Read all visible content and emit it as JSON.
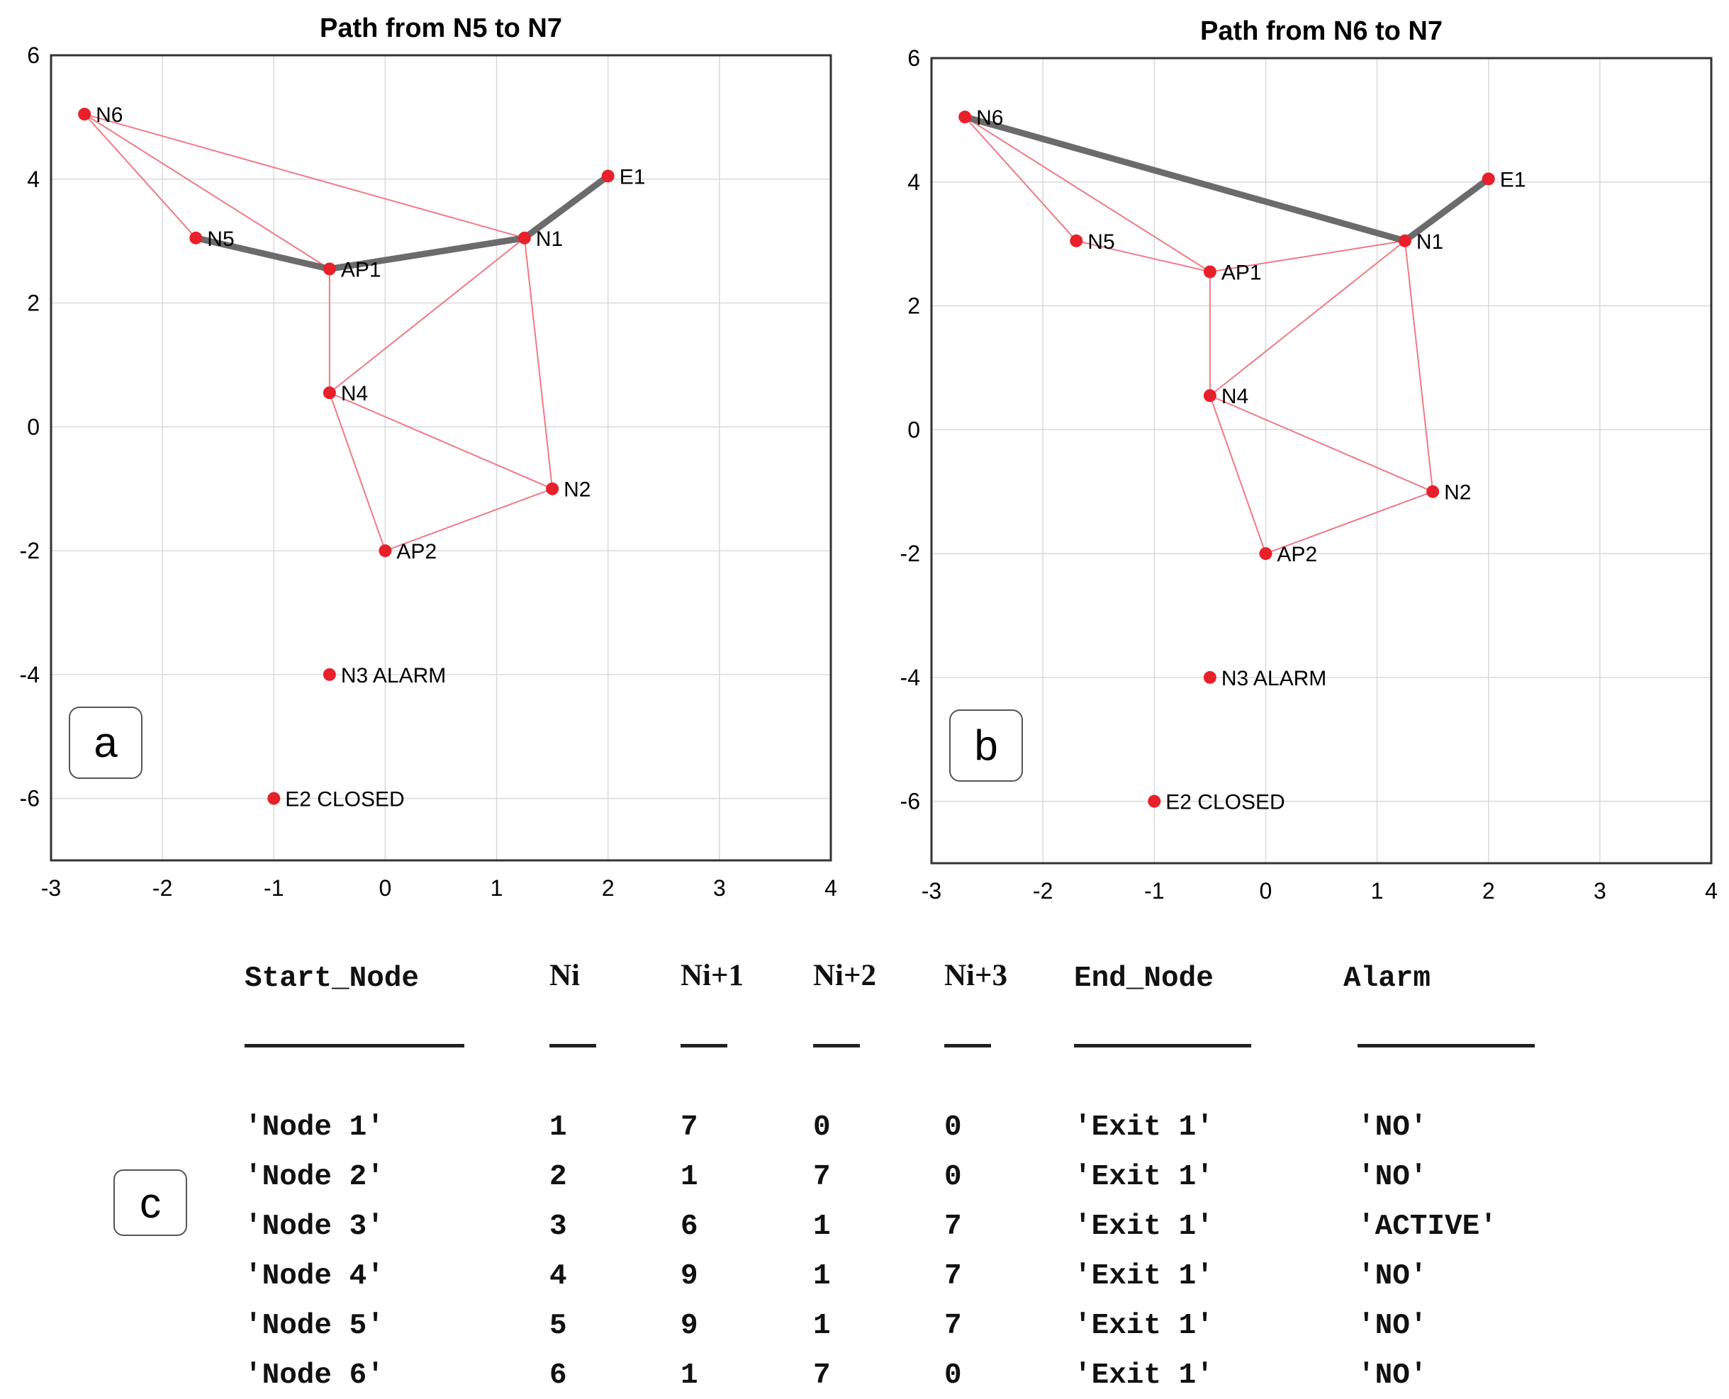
{
  "chart_data": [
    {
      "type": "scatter",
      "panel_label": "a",
      "title": "Path from N5 to N7",
      "xlim": [
        -3,
        4
      ],
      "ylim": [
        -7,
        6
      ],
      "xticks": [
        -3,
        -2,
        -1,
        0,
        1,
        2,
        3,
        4
      ],
      "yticks": [
        6,
        4,
        2,
        0,
        -2,
        -4,
        -6
      ],
      "grid": true,
      "nodes": [
        {
          "id": "N6",
          "label": "N6",
          "x": -2.7,
          "y": 5.05
        },
        {
          "id": "N5",
          "label": "N5",
          "x": -1.7,
          "y": 3.05
        },
        {
          "id": "AP1",
          "label": "AP1",
          "x": -0.5,
          "y": 2.55
        },
        {
          "id": "N1",
          "label": "N1",
          "x": 1.25,
          "y": 3.05
        },
        {
          "id": "E1",
          "label": "E1",
          "x": 2.0,
          "y": 4.05
        },
        {
          "id": "N4",
          "label": "N4",
          "x": -0.5,
          "y": 0.55
        },
        {
          "id": "N2",
          "label": "N2",
          "x": 1.5,
          "y": -1.0
        },
        {
          "id": "AP2",
          "label": "AP2",
          "x": 0.0,
          "y": -2.0
        },
        {
          "id": "N3",
          "label": "N3 ALARM",
          "x": -0.5,
          "y": -4.0
        },
        {
          "id": "E2",
          "label": "E2 CLOSED",
          "x": -1.0,
          "y": -6.0
        }
      ],
      "edges": [
        [
          "N6",
          "N5"
        ],
        [
          "N6",
          "AP1"
        ],
        [
          "N6",
          "N1"
        ],
        [
          "N5",
          "AP1"
        ],
        [
          "AP1",
          "N1"
        ],
        [
          "AP1",
          "N4"
        ],
        [
          "N1",
          "N4"
        ],
        [
          "N1",
          "N2"
        ],
        [
          "N4",
          "N2"
        ],
        [
          "N4",
          "AP2"
        ],
        [
          "AP2",
          "N2"
        ]
      ],
      "path": [
        "N5",
        "AP1",
        "N1",
        "E1"
      ],
      "colors": {
        "node": "#e8202a",
        "edge": "#f07a84",
        "path": "#6b6b6b"
      }
    },
    {
      "type": "scatter",
      "panel_label": "b",
      "title": "Path from N6 to N7",
      "xlim": [
        -3,
        4
      ],
      "ylim": [
        -7,
        6
      ],
      "xticks": [
        -3,
        -2,
        -1,
        0,
        1,
        2,
        3,
        4
      ],
      "yticks": [
        6,
        4,
        2,
        0,
        -2,
        -4,
        -6
      ],
      "grid": true,
      "nodes": [
        {
          "id": "N6",
          "label": "N6",
          "x": -2.7,
          "y": 5.05
        },
        {
          "id": "N5",
          "label": "N5",
          "x": -1.7,
          "y": 3.05
        },
        {
          "id": "AP1",
          "label": "AP1",
          "x": -0.5,
          "y": 2.55
        },
        {
          "id": "N1",
          "label": "N1",
          "x": 1.25,
          "y": 3.05
        },
        {
          "id": "E1",
          "label": "E1",
          "x": 2.0,
          "y": 4.05
        },
        {
          "id": "N4",
          "label": "N4",
          "x": -0.5,
          "y": 0.55
        },
        {
          "id": "N2",
          "label": "N2",
          "x": 1.5,
          "y": -1.0
        },
        {
          "id": "AP2",
          "label": "AP2",
          "x": 0.0,
          "y": -2.0
        },
        {
          "id": "N3",
          "label": "N3 ALARM",
          "x": -0.5,
          "y": -4.0
        },
        {
          "id": "E2",
          "label": "E2 CLOSED",
          "x": -1.0,
          "y": -6.0
        }
      ],
      "edges": [
        [
          "N6",
          "N5"
        ],
        [
          "N6",
          "AP1"
        ],
        [
          "N5",
          "AP1"
        ],
        [
          "AP1",
          "N1"
        ],
        [
          "AP1",
          "N4"
        ],
        [
          "N1",
          "N4"
        ],
        [
          "N1",
          "N2"
        ],
        [
          "N4",
          "N2"
        ],
        [
          "N4",
          "AP2"
        ],
        [
          "AP2",
          "N2"
        ]
      ],
      "path": [
        "N6",
        "N1",
        "E1"
      ],
      "colors": {
        "node": "#e8202a",
        "edge": "#f07a84",
        "path": "#6b6b6b"
      }
    }
  ],
  "table": {
    "panel_label": "c",
    "headers": [
      "Start_Node",
      "Ni",
      "Ni+1",
      "Ni+2",
      "Ni+3",
      "End_Node",
      "Alarm"
    ],
    "rows": [
      [
        "'Node 1'",
        "1",
        "7",
        "0",
        "0",
        "'Exit 1'",
        "'NO'"
      ],
      [
        "'Node 2'",
        "2",
        "1",
        "7",
        "0",
        "'Exit 1'",
        "'NO'"
      ],
      [
        "'Node 3'",
        "3",
        "6",
        "1",
        "7",
        "'Exit 1'",
        "'ACTIVE'"
      ],
      [
        "'Node 4'",
        "4",
        "9",
        "1",
        "7",
        "'Exit 1'",
        "'NO'"
      ],
      [
        "'Node 5'",
        "5",
        "9",
        "1",
        "7",
        "'Exit 1'",
        "'NO'"
      ],
      [
        "'Node 6'",
        "6",
        "1",
        "7",
        "0",
        "'Exit 1'",
        "'NO'"
      ]
    ]
  }
}
